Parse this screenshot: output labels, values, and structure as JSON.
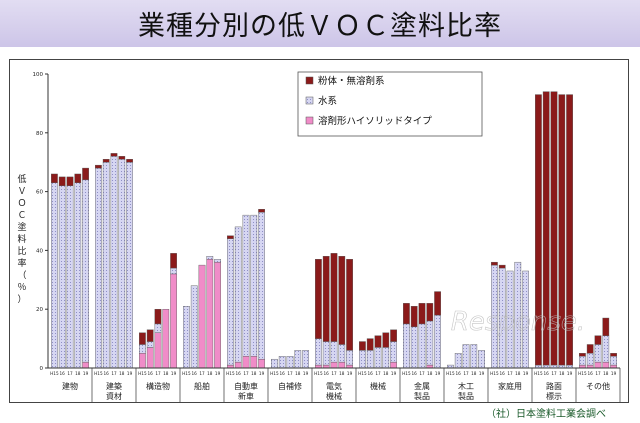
{
  "header": {
    "title": "業種分別の低ＶＯＣ塗料比率"
  },
  "source_note": "（社）日本塗料工業会調べ",
  "watermark": "Response.",
  "colors": {
    "powder": "#8b1a1a",
    "water": "#d6d6f2",
    "solvent": "#f08cc8",
    "title_band": "#d7d0ee"
  },
  "chart_data": {
    "type": "bar",
    "stacked": true,
    "title": "業種分別の低ＶＯＣ塗料比率",
    "ylabel": "低ＶＯＣ塗料比率（％）",
    "ylim": [
      0,
      100
    ],
    "yticks": [
      0,
      20,
      40,
      60,
      80,
      100
    ],
    "year_labels": [
      "H15",
      "16",
      "17",
      "18",
      "19"
    ],
    "legend": [
      "粉体・無溶剤系",
      "水系",
      "溶剤形ハイソリッドタイプ"
    ],
    "series_names": [
      "溶剤形ハイソリッドタイプ",
      "水系",
      "粉体・無溶剤系"
    ],
    "groups": [
      {
        "label": [
          "建物"
        ],
        "bars": [
          [
            0,
            63,
            3
          ],
          [
            0,
            62,
            3
          ],
          [
            0,
            62,
            3
          ],
          [
            0,
            63,
            3
          ],
          [
            2,
            62,
            4
          ]
        ]
      },
      {
        "label": [
          "建築",
          "資材"
        ],
        "bars": [
          [
            0,
            68,
            1
          ],
          [
            0,
            70,
            1
          ],
          [
            0,
            72,
            1
          ],
          [
            0,
            71,
            1
          ],
          [
            0,
            70,
            1
          ]
        ]
      },
      {
        "label": [
          "構造物"
        ],
        "bars": [
          [
            5,
            3,
            4
          ],
          [
            7,
            2,
            4
          ],
          [
            12,
            3,
            5
          ],
          [
            20,
            0,
            0
          ],
          [
            32,
            2,
            5
          ]
        ]
      },
      {
        "label": [
          "船舶"
        ],
        "bars": [
          [
            0,
            21,
            0
          ],
          [
            0,
            28,
            0
          ],
          [
            35,
            0,
            0
          ],
          [
            37,
            1,
            0
          ],
          [
            36,
            1,
            0
          ]
        ]
      },
      {
        "label": [
          "自動車",
          "新車"
        ],
        "bars": [
          [
            1,
            43,
            1
          ],
          [
            2,
            46,
            0
          ],
          [
            4,
            48,
            0
          ],
          [
            4,
            48,
            0
          ],
          [
            3,
            50,
            1
          ]
        ]
      },
      {
        "label": [
          "自補修"
        ],
        "bars": [
          [
            0,
            3,
            0
          ],
          [
            0,
            4,
            0
          ],
          [
            0,
            4,
            0
          ],
          [
            0,
            6,
            0
          ],
          [
            0,
            6,
            0
          ]
        ]
      },
      {
        "label": [
          "電気",
          "機械"
        ],
        "bars": [
          [
            1,
            9,
            27
          ],
          [
            1,
            8,
            29
          ],
          [
            2,
            7,
            30
          ],
          [
            2,
            6,
            30
          ],
          [
            1,
            5,
            31
          ]
        ]
      },
      {
        "label": [
          "機械"
        ],
        "bars": [
          [
            0,
            6,
            3
          ],
          [
            0,
            6,
            4
          ],
          [
            0,
            7,
            4
          ],
          [
            0,
            7,
            5
          ],
          [
            2,
            7,
            4
          ]
        ]
      },
      {
        "label": [
          "金属",
          "製品"
        ],
        "bars": [
          [
            0,
            15,
            7
          ],
          [
            0,
            14,
            7
          ],
          [
            0,
            15,
            7
          ],
          [
            1,
            15,
            6
          ],
          [
            0,
            18,
            8
          ]
        ]
      },
      {
        "label": [
          "木工",
          "製品"
        ],
        "bars": [
          [
            0,
            1,
            0
          ],
          [
            0,
            5,
            0
          ],
          [
            0,
            8,
            0
          ],
          [
            0,
            8,
            0
          ],
          [
            0,
            6,
            0
          ]
        ]
      },
      {
        "label": [
          "家庭用"
        ],
        "bars": [
          [
            0,
            35,
            1
          ],
          [
            0,
            34,
            1
          ],
          [
            0,
            33,
            0
          ],
          [
            0,
            36,
            0
          ],
          [
            0,
            33,
            0
          ]
        ]
      },
      {
        "label": [
          "路面",
          "標示"
        ],
        "bars": [
          [
            0,
            1,
            92
          ],
          [
            0,
            1,
            93
          ],
          [
            0,
            1,
            93
          ],
          [
            0,
            1,
            92
          ],
          [
            0,
            1,
            92
          ]
        ]
      },
      {
        "label": [
          "その他"
        ],
        "bars": [
          [
            1,
            3,
            1
          ],
          [
            1,
            4,
            3
          ],
          [
            2,
            6,
            3
          ],
          [
            2,
            9,
            6
          ],
          [
            1,
            3,
            1
          ]
        ]
      }
    ]
  }
}
